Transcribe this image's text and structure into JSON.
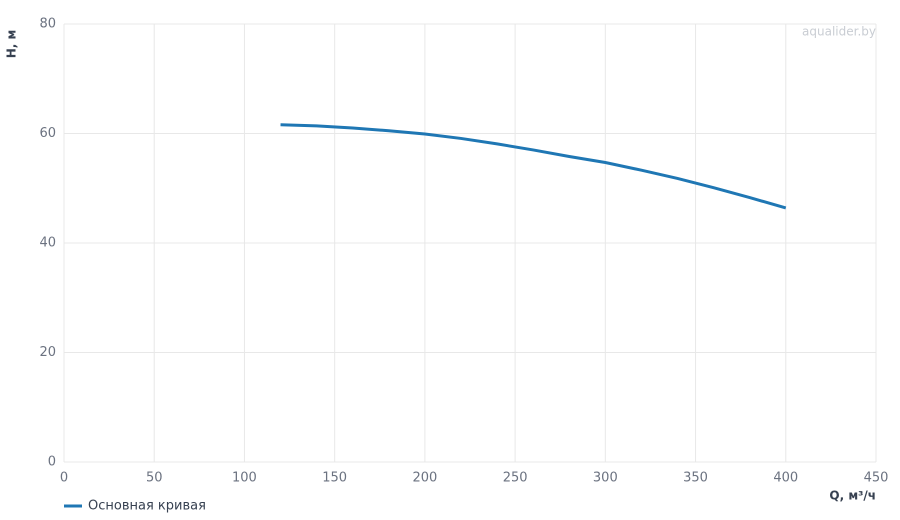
{
  "chart_data": {
    "type": "line",
    "watermark": "aqualider.by",
    "x_label": "Q, м³/ч",
    "y_label": "H, м",
    "x": [
      120,
      140,
      160,
      180,
      200,
      220,
      240,
      260,
      280,
      300,
      320,
      340,
      360,
      380,
      400
    ],
    "series": [
      {
        "name": "Основная кривая",
        "color": "#1f77b4",
        "values": [
          61.6,
          61.4,
          61.0,
          60.5,
          59.9,
          59.1,
          58.1,
          57.0,
          55.8,
          54.7,
          53.3,
          51.8,
          50.1,
          48.3,
          46.4
        ]
      }
    ],
    "xlim": [
      0,
      450
    ],
    "xticks": [
      0,
      50,
      100,
      150,
      200,
      250,
      300,
      350,
      400,
      450
    ],
    "ylim": [
      0,
      80
    ],
    "yticks": [
      0,
      20,
      40,
      60,
      80
    ],
    "grid": true,
    "legend": "bottom-left"
  }
}
